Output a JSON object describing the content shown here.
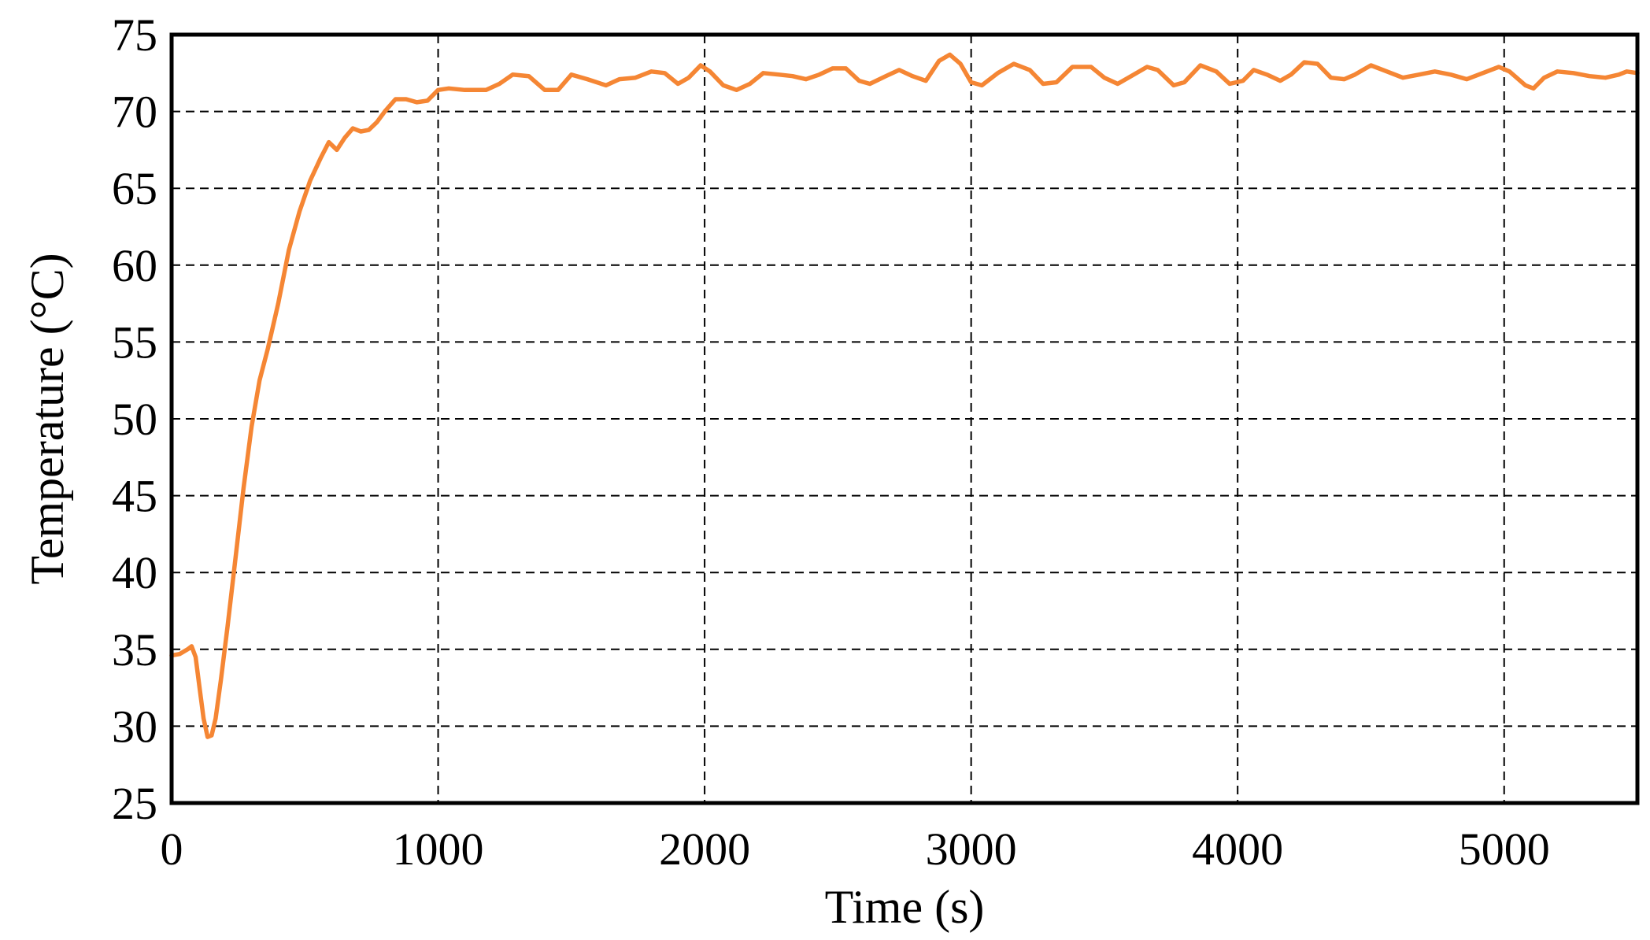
{
  "chart_data": {
    "type": "line",
    "xlabel": "Time (s)",
    "ylabel": "Temperature (°C)",
    "xlim": [
      0,
      5500
    ],
    "ylim": [
      25,
      75
    ],
    "xticks": [
      0,
      1000,
      2000,
      3000,
      4000,
      5000
    ],
    "yticks": [
      25,
      30,
      35,
      40,
      45,
      50,
      55,
      60,
      65,
      70,
      75
    ],
    "xtick_labels": [
      "0",
      "1000",
      "2000",
      "3000",
      "4000",
      "5000"
    ],
    "ytick_labels": [
      "25",
      "30",
      "35",
      "40",
      "45",
      "50",
      "55",
      "60",
      "65",
      "70",
      "75"
    ],
    "grid": true,
    "legend": "none",
    "color": "#f58634",
    "series": [
      {
        "points": [
          [
            0,
            34.6
          ],
          [
            30,
            34.7
          ],
          [
            60,
            35.0
          ],
          [
            75,
            35.2
          ],
          [
            90,
            34.5
          ],
          [
            105,
            32.5
          ],
          [
            120,
            30.5
          ],
          [
            135,
            29.3
          ],
          [
            150,
            29.4
          ],
          [
            165,
            30.5
          ],
          [
            185,
            33.0
          ],
          [
            210,
            36.5
          ],
          [
            240,
            41.0
          ],
          [
            270,
            45.5
          ],
          [
            300,
            49.5
          ],
          [
            330,
            52.5
          ],
          [
            360,
            54.5
          ],
          [
            400,
            57.5
          ],
          [
            440,
            61.0
          ],
          [
            480,
            63.5
          ],
          [
            520,
            65.5
          ],
          [
            560,
            67.0
          ],
          [
            590,
            68.0
          ],
          [
            620,
            67.5
          ],
          [
            650,
            68.3
          ],
          [
            680,
            68.9
          ],
          [
            710,
            68.7
          ],
          [
            740,
            68.8
          ],
          [
            770,
            69.3
          ],
          [
            800,
            70.0
          ],
          [
            840,
            70.8
          ],
          [
            880,
            70.8
          ],
          [
            920,
            70.6
          ],
          [
            960,
            70.7
          ],
          [
            1000,
            71.4
          ],
          [
            1040,
            71.5
          ],
          [
            1100,
            71.4
          ],
          [
            1180,
            71.4
          ],
          [
            1230,
            71.8
          ],
          [
            1280,
            72.4
          ],
          [
            1340,
            72.3
          ],
          [
            1400,
            71.4
          ],
          [
            1450,
            71.4
          ],
          [
            1500,
            72.4
          ],
          [
            1560,
            72.1
          ],
          [
            1630,
            71.7
          ],
          [
            1680,
            72.1
          ],
          [
            1740,
            72.2
          ],
          [
            1800,
            72.6
          ],
          [
            1850,
            72.5
          ],
          [
            1900,
            71.8
          ],
          [
            1940,
            72.2
          ],
          [
            1985,
            73.0
          ],
          [
            2020,
            72.6
          ],
          [
            2070,
            71.7
          ],
          [
            2120,
            71.4
          ],
          [
            2170,
            71.8
          ],
          [
            2220,
            72.5
          ],
          [
            2280,
            72.4
          ],
          [
            2330,
            72.3
          ],
          [
            2380,
            72.1
          ],
          [
            2430,
            72.4
          ],
          [
            2480,
            72.8
          ],
          [
            2530,
            72.8
          ],
          [
            2580,
            72.0
          ],
          [
            2620,
            71.8
          ],
          [
            2680,
            72.3
          ],
          [
            2730,
            72.7
          ],
          [
            2780,
            72.3
          ],
          [
            2830,
            72.0
          ],
          [
            2880,
            73.3
          ],
          [
            2920,
            73.7
          ],
          [
            2960,
            73.1
          ],
          [
            3000,
            71.9
          ],
          [
            3040,
            71.7
          ],
          [
            3100,
            72.5
          ],
          [
            3160,
            73.1
          ],
          [
            3220,
            72.7
          ],
          [
            3270,
            71.8
          ],
          [
            3320,
            71.9
          ],
          [
            3380,
            72.9
          ],
          [
            3450,
            72.9
          ],
          [
            3500,
            72.2
          ],
          [
            3550,
            71.8
          ],
          [
            3600,
            72.3
          ],
          [
            3660,
            72.9
          ],
          [
            3700,
            72.7
          ],
          [
            3760,
            71.7
          ],
          [
            3800,
            71.9
          ],
          [
            3860,
            73.0
          ],
          [
            3920,
            72.6
          ],
          [
            3970,
            71.8
          ],
          [
            4020,
            72.0
          ],
          [
            4060,
            72.7
          ],
          [
            4110,
            72.4
          ],
          [
            4160,
            72.0
          ],
          [
            4200,
            72.4
          ],
          [
            4250,
            73.2
          ],
          [
            4300,
            73.1
          ],
          [
            4350,
            72.2
          ],
          [
            4400,
            72.1
          ],
          [
            4440,
            72.4
          ],
          [
            4500,
            73.0
          ],
          [
            4560,
            72.6
          ],
          [
            4620,
            72.2
          ],
          [
            4680,
            72.4
          ],
          [
            4740,
            72.6
          ],
          [
            4800,
            72.4
          ],
          [
            4860,
            72.1
          ],
          [
            4920,
            72.5
          ],
          [
            4980,
            72.9
          ],
          [
            5020,
            72.6
          ],
          [
            5080,
            71.7
          ],
          [
            5110,
            71.5
          ],
          [
            5150,
            72.2
          ],
          [
            5200,
            72.6
          ],
          [
            5260,
            72.5
          ],
          [
            5320,
            72.3
          ],
          [
            5380,
            72.2
          ],
          [
            5430,
            72.4
          ],
          [
            5460,
            72.6
          ],
          [
            5500,
            72.5
          ]
        ]
      }
    ]
  }
}
